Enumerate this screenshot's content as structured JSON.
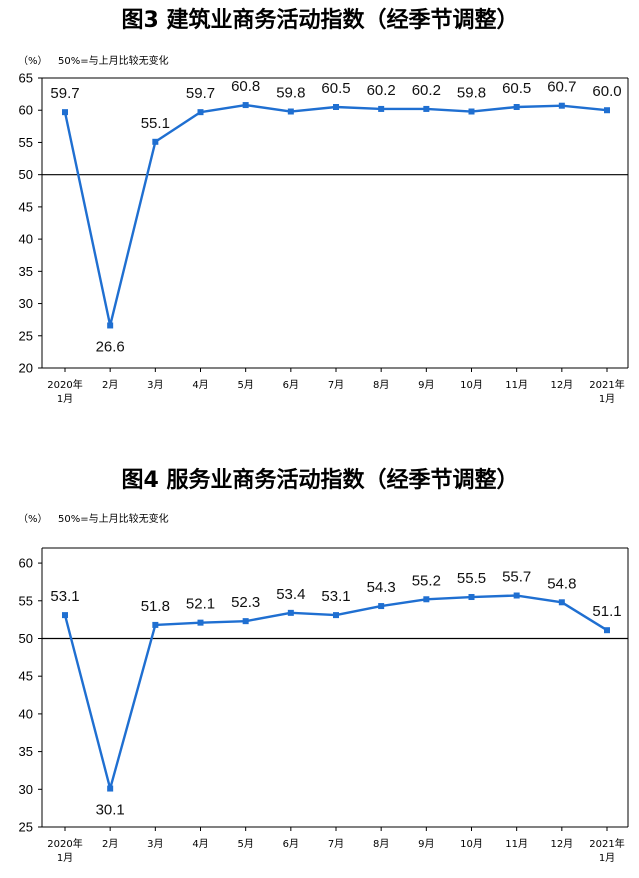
{
  "chart_data": [
    {
      "type": "line",
      "title": "图3  建筑业商务活动指数（经季节调整）",
      "unit_label": "（%）",
      "reference_note": "50%=与上月比较无变化",
      "categories": [
        "2020年\n1月",
        "2月",
        "3月",
        "4月",
        "5月",
        "6月",
        "7月",
        "8月",
        "9月",
        "10月",
        "11月",
        "12月",
        "2021年\n1月"
      ],
      "series": [
        {
          "values": [
            59.7,
            26.6,
            55.1,
            59.7,
            60.8,
            59.8,
            60.5,
            60.2,
            60.2,
            59.8,
            60.5,
            60.7,
            60.0
          ]
        }
      ],
      "labels": [
        "59.7",
        "26.6",
        "55.1",
        "59.7",
        "60.8",
        "59.8",
        "60.5",
        "60.2",
        "60.2",
        "59.8",
        "60.5",
        "60.7",
        "60.0"
      ],
      "yticks": [
        20,
        25,
        30,
        35,
        40,
        45,
        50,
        55,
        60,
        65
      ],
      "ylim": [
        20,
        65
      ],
      "reference_line": 50,
      "grid": false,
      "line_color": "#1f6fd1"
    },
    {
      "type": "line",
      "title": "图4  服务业商务活动指数（经季节调整）",
      "unit_label": "（%）",
      "reference_note": "50%=与上月比较无变化",
      "categories": [
        "2020年\n1月",
        "2月",
        "3月",
        "4月",
        "5月",
        "6月",
        "7月",
        "8月",
        "9月",
        "10月",
        "11月",
        "12月",
        "2021年\n1月"
      ],
      "series": [
        {
          "values": [
            53.1,
            30.1,
            51.8,
            52.1,
            52.3,
            53.4,
            53.1,
            54.3,
            55.2,
            55.5,
            55.7,
            54.8,
            51.1
          ]
        }
      ],
      "labels": [
        "53.1",
        "30.1",
        "51.8",
        "52.1",
        "52.3",
        "53.4",
        "53.1",
        "54.3",
        "55.2",
        "55.5",
        "55.7",
        "54.8",
        "51.1"
      ],
      "yticks": [
        25,
        30,
        35,
        40,
        45,
        50,
        55,
        60
      ],
      "ylim": [
        25,
        62
      ],
      "reference_line": 50,
      "grid": false,
      "line_color": "#1f6fd1"
    }
  ]
}
